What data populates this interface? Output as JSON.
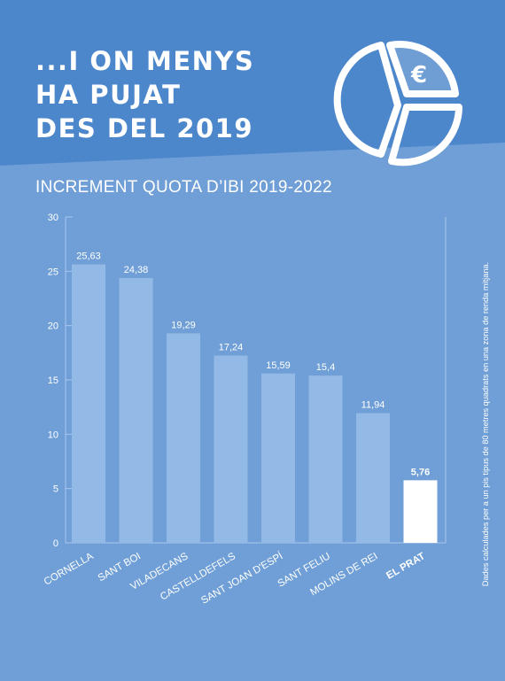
{
  "headline": {
    "lines": [
      "...I ON MENYS",
      "HA PUJAT",
      "DES DEL 2019"
    ]
  },
  "icons": {
    "pie": "pie-chart-euro-icon",
    "currency_symbol": "€"
  },
  "colors": {
    "background": "#6f9fd6",
    "header_band": "#4c86cb",
    "bar": "#93b9e6",
    "highlight_bar": "#ffffff",
    "axis": "#aac7ec"
  },
  "chart_data": {
    "type": "bar",
    "title": "INCREMENT QUOTA D’IBI 2019-2022",
    "categories": [
      "CORNELLA",
      "SANT BOI",
      "VILADECANS",
      "CASTELLDEFELS",
      "SANT JOAN D'ESPÍ",
      "SANT FELIU",
      "MOLINS DE REI",
      "EL PRAT"
    ],
    "values": [
      25.63,
      24.38,
      19.29,
      17.24,
      15.59,
      15.4,
      11.94,
      5.76
    ],
    "value_labels": [
      "25,63",
      "24,38",
      "19,29",
      "17,24",
      "15,59",
      "15,4",
      "11,94",
      "5,76"
    ],
    "highlight": "EL PRAT",
    "ylim": [
      0,
      30
    ],
    "yticks": [
      0,
      5,
      10,
      15,
      20,
      25,
      30
    ],
    "grid": false,
    "note": "Dades calculades per a un pis tipus de 80 metres quadrats en una zona de renda mitjana."
  }
}
